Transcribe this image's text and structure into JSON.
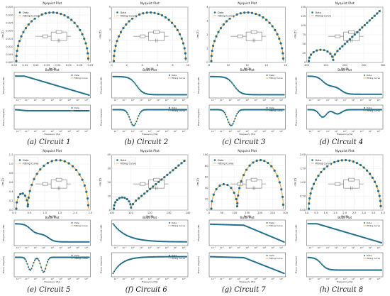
{
  "figure": {
    "colors": {
      "data": "#1f6e8c",
      "fit": "#f0a030",
      "axis": "#444444",
      "grid": "#dddddd",
      "circuit": "#555555"
    },
    "panels": [
      {
        "caption": "(a) Circuit 1",
        "nyquist": {
          "title": "Nyquist Plot",
          "xlabel": "Re(Z)",
          "ylabel": "-Im(Z)",
          "type": "arc",
          "xlim": [
            0.0,
            0.07
          ],
          "ylim": [
            0,
            0.035
          ],
          "xticks": [
            "0.00",
            "0.01",
            "0.02",
            "0.03",
            "0.04",
            "0.05",
            "0.06",
            "0.07"
          ],
          "yticks": [
            "0.000",
            "0.005",
            "0.010",
            "0.015",
            "0.020",
            "0.025",
            "0.030",
            "0.035"
          ]
        },
        "bode": {
          "title": "Bode Plot",
          "mag": "linear-decline",
          "phase": "flat-low"
        }
      },
      {
        "caption": "(b) Circuit 2",
        "nyquist": {
          "title": "Nyquist Plot",
          "xlabel": "Re(Z)",
          "ylabel": "-Im(Z)",
          "type": "arc",
          "xlim": [
            0,
            10
          ],
          "ylim": [
            0,
            5
          ],
          "xticks": [
            "0",
            "2",
            "4",
            "6",
            "8",
            "10"
          ],
          "yticks": [
            "0",
            "1",
            "2",
            "3",
            "4",
            "5"
          ]
        },
        "bode": {
          "title": "Bode Plot",
          "mag": "step",
          "phase": "single-dip"
        }
      },
      {
        "caption": "(c) Circuit 3",
        "nyquist": {
          "title": "Nyquist Plot",
          "xlabel": "Re(Z)",
          "ylabel": "-Im(Z)",
          "type": "arc",
          "xlim": [
            8,
            16
          ],
          "ylim": [
            0,
            4
          ],
          "xticks": [
            "8",
            "10",
            "12",
            "14",
            "16"
          ],
          "yticks": [
            "0",
            "1",
            "2",
            "3",
            "4"
          ]
        },
        "bode": {
          "title": "Bode Plot",
          "mag": "step",
          "phase": "single-dip"
        }
      },
      {
        "caption": "(d) Circuit 4",
        "nyquist": {
          "title": "Nyquist Plot",
          "xlabel": "Re(Z)",
          "ylabel": "-Im(Z)",
          "type": "arc-line",
          "xlim": [
            100,
            300
          ],
          "ylim": [
            0,
            150
          ],
          "xticks": [
            "100",
            "150",
            "200",
            "250",
            "300"
          ],
          "yticks": [
            "0",
            "25",
            "50",
            "75",
            "100",
            "125",
            "150"
          ]
        },
        "bode": {
          "title": "Bode Plot",
          "mag": "double-step",
          "phase": "shallow-dip"
        }
      },
      {
        "caption": "(e) Circuit 5",
        "nyquist": {
          "title": "Nyquist Plot",
          "xlabel": "Re(Z)",
          "ylabel": "-Im(Z)",
          "type": "double-arc",
          "xlim": [
            0.0,
            2.5
          ],
          "ylim": [
            0.0,
            1.2
          ],
          "xticks": [
            "0.0",
            "0.5",
            "1.0",
            "1.5",
            "2.0",
            "2.5"
          ],
          "yticks": [
            "0.0",
            "0.2",
            "0.4",
            "0.6",
            "0.8",
            "1.0",
            "1.2"
          ]
        },
        "bode": {
          "title": "Bode Plot",
          "mag": "double-step",
          "phase": "double-dip"
        }
      },
      {
        "caption": "(f) Circuit 6",
        "nyquist": {
          "title": "Nyquist Plot",
          "xlabel": "Re(Z)",
          "ylabel": "-Im(Z)",
          "type": "arc-line-steep",
          "xlim": [
            100,
            144
          ],
          "ylim": [
            0,
            40
          ],
          "xticks": [
            "100",
            "110",
            "120",
            "130",
            "140"
          ],
          "yticks": [
            "0",
            "10",
            "20",
            "30",
            "40"
          ]
        },
        "bode": {
          "title": "Bode Plot",
          "mag": "decay",
          "phase": "rise"
        }
      },
      {
        "caption": "(g) Circuit 7",
        "nyquist": {
          "title": "Nyquist Plot",
          "xlabel": "Re(Z)",
          "ylabel": "-Im(Z)",
          "type": "double-arc-big",
          "xlim": [
            0,
            300
          ],
          "ylim": [
            0,
            100
          ],
          "xticks": [
            "0",
            "50",
            "100",
            "150",
            "200",
            "250",
            "300"
          ],
          "yticks": [
            "0",
            "20",
            "40",
            "60",
            "80",
            "100"
          ]
        },
        "bode": {
          "title": "Bode Plot",
          "mag": "late-drop",
          "phase": "late-drop"
        }
      },
      {
        "caption": "(h) Circuit 8",
        "nyquist": {
          "title": "Nyquist Plot",
          "xlabel": "Re(Z)",
          "ylabel": "-Im(Z)",
          "type": "arc",
          "xlim": [
            0.0,
            4.0
          ],
          "ylim": [
            0.0,
            2.0
          ],
          "xticks": [
            "0.0",
            "0.5",
            "1.0",
            "1.5",
            "2.0",
            "2.5",
            "3.0",
            "3.5",
            "4.0"
          ],
          "yticks": [
            "0.00",
            "0.50",
            "1.00",
            "1.50",
            "2.00"
          ]
        },
        "bode": {
          "title": "Bode Plot",
          "mag": "linear-decline",
          "phase": "step-down"
        }
      }
    ],
    "legend": {
      "data_label": "Data",
      "fit_label": "Fitting Curve"
    },
    "bode_labels": {
      "mag_ylabel": "Magnitude (dB)",
      "phase_ylabel": "Phase (degrees)",
      "xlabel": "Frequency (Hz)"
    },
    "freq_ticks": [
      "10⁻²",
      "10⁻¹",
      "10⁰",
      "10¹",
      "10²",
      "10³",
      "10⁴",
      "10⁵",
      "10⁶"
    ]
  },
  "chart_data": [
    {
      "type": "scatter",
      "title": "Nyquist Plot",
      "xlabel": "Re(Z)",
      "ylabel": "-Im(Z)",
      "caption": "(a) Circuit 1",
      "xlim": [
        0.0,
        0.07
      ],
      "ylim": [
        0,
        0.035
      ],
      "series": [
        {
          "name": "Data"
        },
        {
          "name": "Fitting Curve"
        }
      ]
    },
    {
      "type": "scatter",
      "title": "Nyquist Plot",
      "xlabel": "Re(Z)",
      "ylabel": "-Im(Z)",
      "caption": "(b) Circuit 2",
      "xlim": [
        0,
        10
      ],
      "ylim": [
        0,
        5
      ],
      "series": [
        {
          "name": "Data"
        },
        {
          "name": "Fitting Curve"
        }
      ]
    },
    {
      "type": "scatter",
      "title": "Nyquist Plot",
      "xlabel": "Re(Z)",
      "ylabel": "-Im(Z)",
      "caption": "(c) Circuit 3",
      "xlim": [
        8,
        16
      ],
      "ylim": [
        0,
        4
      ],
      "series": [
        {
          "name": "Data"
        },
        {
          "name": "Fitting Curve"
        }
      ]
    },
    {
      "type": "scatter",
      "title": "Nyquist Plot",
      "xlabel": "Re(Z)",
      "ylabel": "-Im(Z)",
      "caption": "(d) Circuit 4",
      "xlim": [
        100,
        300
      ],
      "ylim": [
        0,
        150
      ],
      "series": [
        {
          "name": "Data"
        },
        {
          "name": "Fitting Curve"
        }
      ]
    },
    {
      "type": "scatter",
      "title": "Nyquist Plot",
      "xlabel": "Re(Z)",
      "ylabel": "-Im(Z)",
      "caption": "(e) Circuit 5",
      "xlim": [
        0.0,
        2.5
      ],
      "ylim": [
        0.0,
        1.2
      ],
      "series": [
        {
          "name": "Data"
        },
        {
          "name": "Fitting Curve"
        }
      ]
    },
    {
      "type": "scatter",
      "title": "Nyquist Plot",
      "xlabel": "Re(Z)",
      "ylabel": "-Im(Z)",
      "caption": "(f) Circuit 6",
      "xlim": [
        100,
        144
      ],
      "ylim": [
        0,
        40
      ],
      "series": [
        {
          "name": "Data"
        },
        {
          "name": "Fitting Curve"
        }
      ]
    },
    {
      "type": "scatter",
      "title": "Nyquist Plot",
      "xlabel": "Re(Z)",
      "ylabel": "-Im(Z)",
      "caption": "(g) Circuit 7",
      "xlim": [
        0,
        300
      ],
      "ylim": [
        0,
        100
      ],
      "series": [
        {
          "name": "Data"
        },
        {
          "name": "Fitting Curve"
        }
      ]
    },
    {
      "type": "scatter",
      "title": "Nyquist Plot",
      "xlabel": "Re(Z)",
      "ylabel": "-Im(Z)",
      "caption": "(h) Circuit 8",
      "xlim": [
        0.0,
        4.0
      ],
      "ylim": [
        0.0,
        2.0
      ],
      "series": [
        {
          "name": "Data"
        },
        {
          "name": "Fitting Curve"
        }
      ]
    }
  ]
}
